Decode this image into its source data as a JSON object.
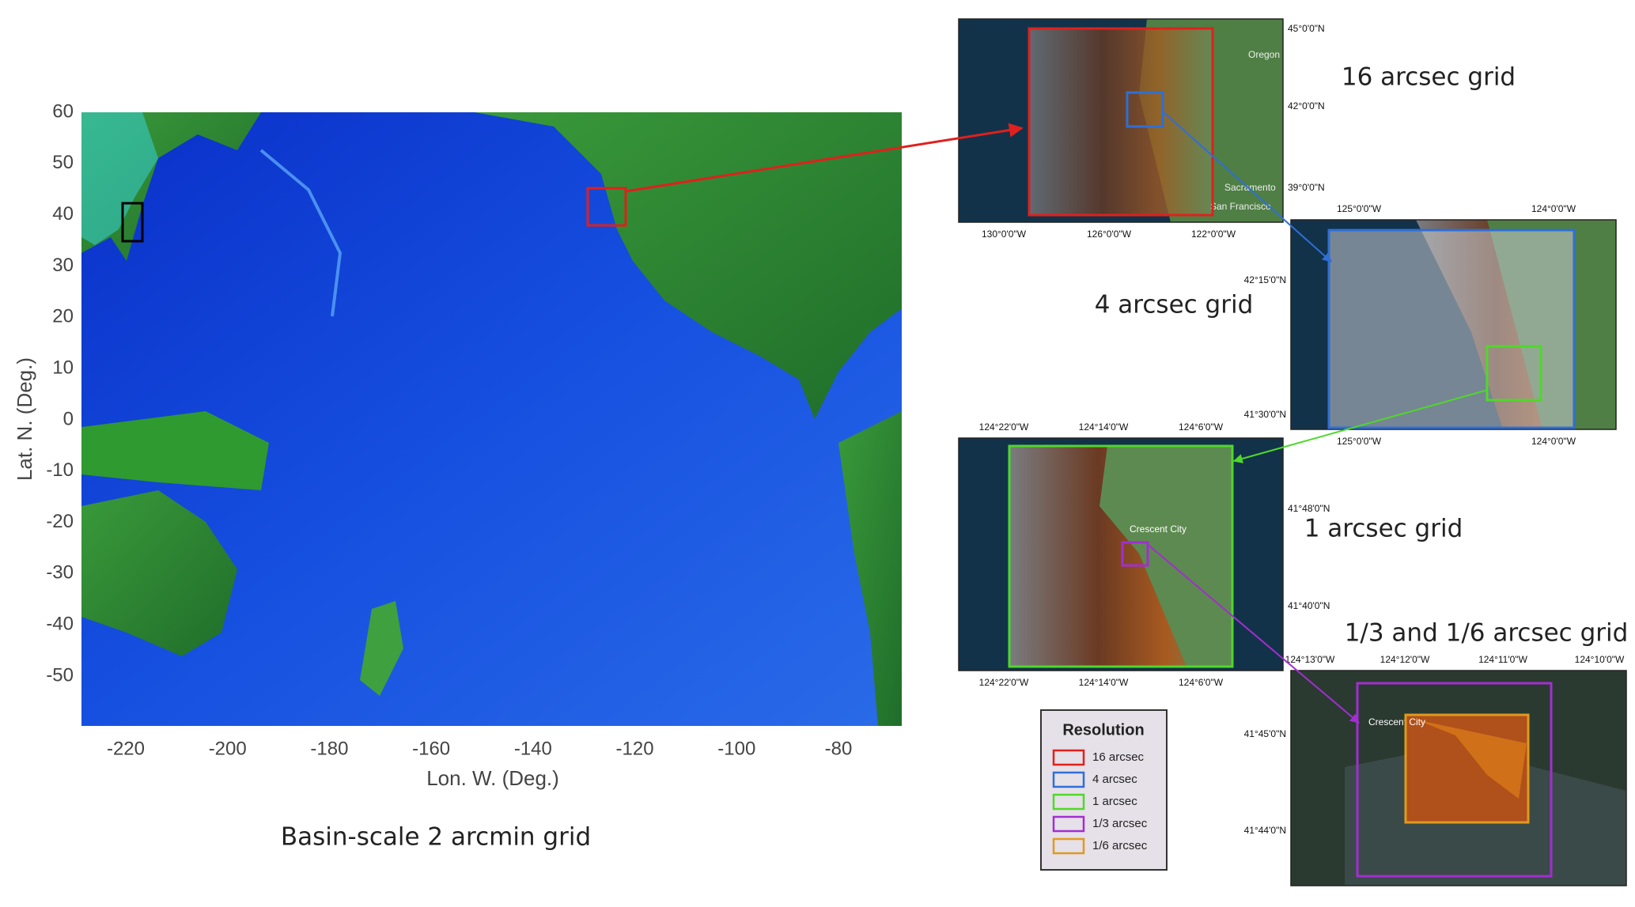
{
  "basin_map": {
    "caption": "Basin-scale 2 arcmin grid",
    "xlabel": "Lon. W. (Deg.)",
    "ylabel": "Lat. N. (Deg.)",
    "xticks": [
      -220,
      -200,
      -180,
      -160,
      -140,
      -120,
      -100,
      -80
    ],
    "yticks": [
      60,
      50,
      40,
      30,
      20,
      10,
      0,
      -10,
      -20,
      -30,
      -40,
      -50
    ]
  },
  "panels": [
    {
      "caption": "16 arcsec grid",
      "place_labels": [
        "Oregon",
        "Sacramento",
        "San Francisco"
      ],
      "right_labels": [
        "45°0'0\"N",
        "42°0'0\"N",
        "39°0'0\"N"
      ],
      "bottom_labels": [
        "130°0'0\"W",
        "126°0'0\"W",
        "122°0'0\"W"
      ]
    },
    {
      "caption": "4 arcsec grid",
      "top_labels": [
        "125°0'0\"W",
        "124°0'0\"W"
      ],
      "left_labels": [
        "42°15'0\"N",
        "41°30'0\"N"
      ],
      "bottom_labels": [
        "125°0'0\"W",
        "124°0'0\"W"
      ]
    },
    {
      "caption": "1 arcsec grid",
      "place_labels": [
        "Crescent City"
      ],
      "top_labels": [
        "124°22'0\"W",
        "124°14'0\"W",
        "124°6'0\"W"
      ],
      "right_labels": [
        "41°48'0\"N",
        "41°40'0\"N"
      ],
      "bottom_labels": [
        "124°22'0\"W",
        "124°14'0\"W",
        "124°6'0\"W"
      ]
    },
    {
      "caption": "1/3 and 1/6 arcsec grid",
      "place_labels": [
        "Crescent City"
      ],
      "top_labels": [
        "124°13'0\"W",
        "124°12'0\"W",
        "124°11'0\"W",
        "124°10'0\"W"
      ],
      "left_labels": [
        "41°45'0\"N",
        "41°44'0\"N"
      ]
    }
  ],
  "legend": {
    "title": "Resolution",
    "items": [
      {
        "label": "16 arcsec",
        "color": "#e0201c"
      },
      {
        "label": "4 arcsec",
        "color": "#2f6fd6"
      },
      {
        "label": "1 arcsec",
        "color": "#4fd82a"
      },
      {
        "label": "1/3 arcsec",
        "color": "#a22ed1"
      },
      {
        "label": "1/6 arcsec",
        "color": "#e09a20"
      }
    ]
  }
}
